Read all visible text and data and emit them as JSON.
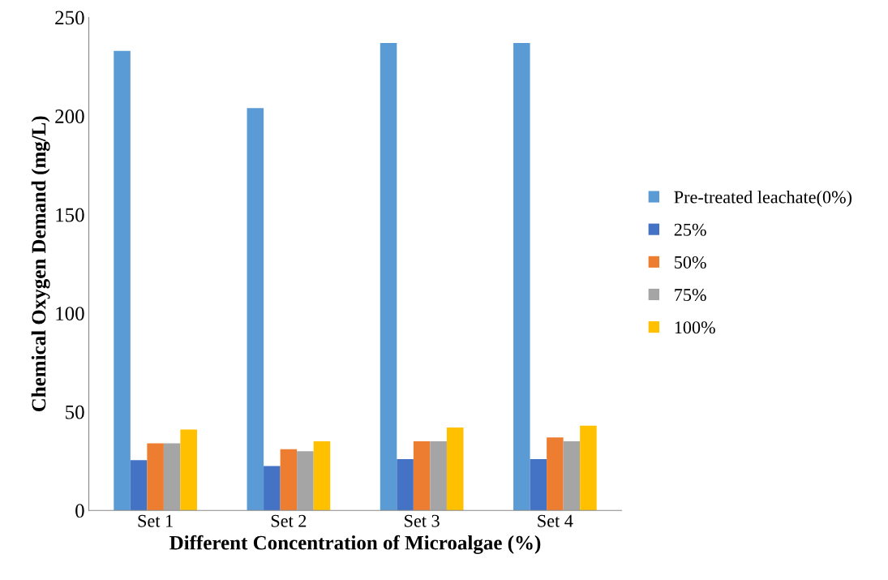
{
  "chart_data": {
    "type": "bar",
    "xlabel": "Different Concentration of Microalgae (%)",
    "ylabel": "Chemical Oxygen Demand (mg/L)",
    "categories": [
      "Set 1",
      "Set 2",
      "Set 3",
      "Set 4"
    ],
    "series": [
      {
        "name": "Pre-treated leachate(0%)",
        "color": "#5b9bd5",
        "values": [
          233,
          204,
          237,
          237
        ]
      },
      {
        "name": "25%",
        "color": "#4472c4",
        "values": [
          25.5,
          22.5,
          26,
          26
        ]
      },
      {
        "name": "50%",
        "color": "#ed7d31",
        "values": [
          34,
          31,
          35,
          37
        ]
      },
      {
        "name": "75%",
        "color": "#a5a5a5",
        "values": [
          34,
          30,
          35,
          35
        ]
      },
      {
        "name": "100%",
        "color": "#ffc000",
        "values": [
          41,
          35,
          42,
          43
        ]
      }
    ],
    "ylim": [
      0,
      250
    ],
    "yticks": [
      0,
      50,
      100,
      150,
      200,
      250
    ],
    "grid": false,
    "legend": "right"
  }
}
